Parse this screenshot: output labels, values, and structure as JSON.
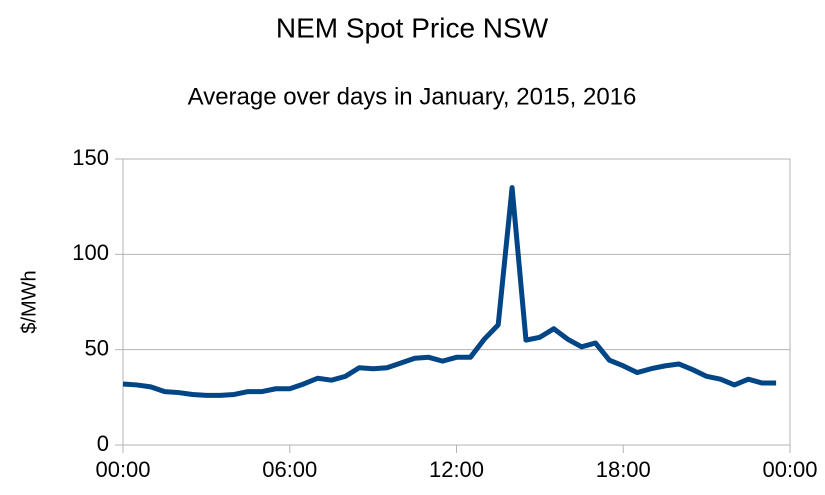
{
  "chart_data": {
    "type": "line",
    "title": "NEM Spot Price NSW",
    "subtitle": "Average over days in January, 2015, 2016",
    "ylabel": "$/MWh",
    "x": [
      0,
      0.5,
      1,
      1.5,
      2,
      2.5,
      3,
      3.5,
      4,
      4.5,
      5,
      5.5,
      6,
      6.5,
      7,
      7.5,
      8,
      8.5,
      9,
      9.5,
      10,
      10.5,
      11,
      11.5,
      12,
      12.5,
      13,
      13.5,
      14,
      14.5,
      15,
      15.5,
      16,
      16.5,
      17,
      17.5,
      18,
      18.5,
      19,
      19.5,
      20,
      20.5,
      21,
      21.5,
      22,
      22.5,
      23,
      23.5
    ],
    "series": [
      {
        "name": "NSW",
        "color": "#004586",
        "values": [
          32,
          31.5,
          30.5,
          28,
          27.5,
          26.5,
          26,
          26,
          26.5,
          28,
          28,
          29.5,
          29.5,
          32,
          35,
          34,
          36,
          40.5,
          40,
          40.5,
          43,
          45.5,
          46,
          44,
          46,
          46,
          55.5,
          63,
          135,
          55,
          56.5,
          61,
          55.5,
          51.5,
          53.5,
          44.5,
          41.5,
          38,
          40,
          41.5,
          42.5,
          39.5,
          36,
          34.5,
          31.5,
          34.5,
          32.5,
          32.5
        ]
      }
    ],
    "xlim": [
      0,
      24
    ],
    "xticks": [
      {
        "value": 0,
        "label": "00:00"
      },
      {
        "value": 6,
        "label": "06:00"
      },
      {
        "value": 12,
        "label": "12:00"
      },
      {
        "value": 18,
        "label": "18:00"
      },
      {
        "value": 24,
        "label": "00:00"
      }
    ],
    "ylim": [
      0,
      150
    ],
    "yticks": [
      0,
      50,
      100,
      150
    ],
    "grid": true
  }
}
